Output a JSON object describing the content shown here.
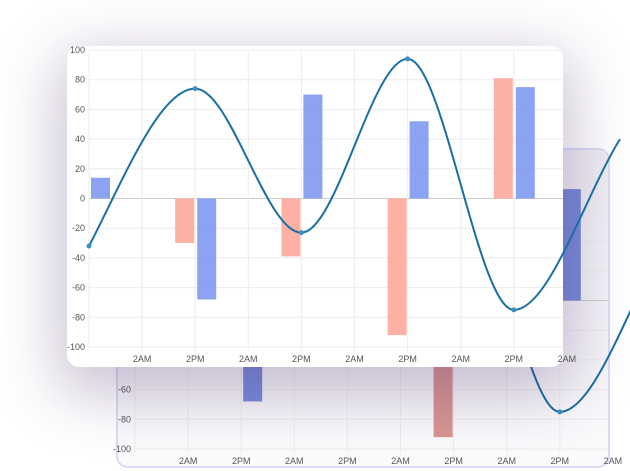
{
  "chart_data": {
    "type": "bar+line",
    "y_ticks": [
      "100",
      "80",
      "60",
      "40",
      "20",
      "0",
      "-20",
      "-40",
      "-60",
      "-80",
      "-100"
    ],
    "x_ticks": [
      "2AM",
      "2PM",
      "2AM",
      "2PM",
      "2AM",
      "2PM",
      "2AM",
      "2PM",
      "2AM"
    ],
    "ylim": [
      -100,
      100
    ],
    "grid": true,
    "series": [
      {
        "type": "bar",
        "color": "#fca99a",
        "values": [
          0,
          -30,
          -39,
          -92,
          81
        ]
      },
      {
        "type": "bar",
        "color": "#8099f0",
        "values": [
          14,
          -68,
          70,
          52,
          75
        ]
      },
      {
        "type": "line",
        "color": "#1a6fa3",
        "values": [
          -32,
          74,
          -23,
          94,
          -75
        ]
      }
    ]
  }
}
